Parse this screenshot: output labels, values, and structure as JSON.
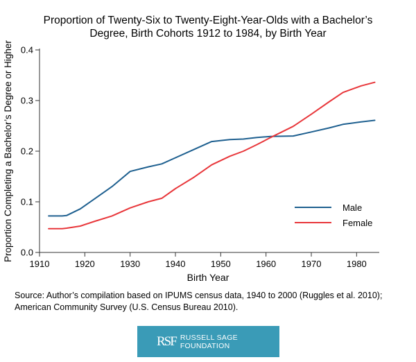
{
  "chart_data": {
    "type": "line",
    "title": "Proportion of Twenty-Six to Twenty-Eight-Year-Olds with a Bachelor’s Degree, Birth Cohorts 1912 to 1984, by Birth Year",
    "title_lines": [
      "Proportion of Twenty-Six to Twenty-Eight-Year-Olds with a Bachelor’s",
      "Degree, Birth Cohorts 1912 to 1984, by Birth Year"
    ],
    "xlabel": "Birth Year",
    "ylabel": "Proportion Completing a Bachelor’s Degree or Higher",
    "xlim": [
      1910,
      1985
    ],
    "ylim": [
      0,
      0.4
    ],
    "xticks": [
      1910,
      1920,
      1930,
      1940,
      1950,
      1960,
      1970,
      1980
    ],
    "yticks": [
      0.0,
      0.1,
      0.2,
      0.3,
      0.4
    ],
    "xtick_labels": [
      "1910",
      "1920",
      "1930",
      "1940",
      "1950",
      "1960",
      "1970",
      "1980"
    ],
    "ytick_labels": [
      "0.0",
      "0.1",
      "0.2",
      "0.3",
      "0.4"
    ],
    "grid": false,
    "legend_position": "inside-lower-right",
    "series": [
      {
        "name": "Male",
        "color": "#1d5f8f",
        "x": [
          1912,
          1915,
          1916,
          1919,
          1922,
          1926,
          1930,
          1934,
          1937,
          1940,
          1944,
          1948,
          1952,
          1955,
          1958,
          1961,
          1966,
          1970,
          1974,
          1977,
          1981,
          1984
        ],
        "y": [
          0.072,
          0.072,
          0.073,
          0.086,
          0.105,
          0.13,
          0.16,
          0.169,
          0.175,
          0.187,
          0.203,
          0.219,
          0.223,
          0.224,
          0.227,
          0.229,
          0.23,
          0.238,
          0.246,
          0.253,
          0.258,
          0.261
        ]
      },
      {
        "name": "Female",
        "color": "#e8363a",
        "x": [
          1912,
          1915,
          1916,
          1919,
          1922,
          1926,
          1930,
          1934,
          1937,
          1940,
          1944,
          1948,
          1952,
          1955,
          1958,
          1961,
          1966,
          1970,
          1974,
          1977,
          1981,
          1984
        ],
        "y": [
          0.047,
          0.047,
          0.048,
          0.052,
          0.061,
          0.072,
          0.088,
          0.1,
          0.107,
          0.126,
          0.148,
          0.173,
          0.19,
          0.2,
          0.213,
          0.227,
          0.249,
          0.273,
          0.298,
          0.316,
          0.329,
          0.336
        ]
      }
    ]
  },
  "source_text_lines": [
    "Source: Author’s compilation based on IPUMS census data, 1940 to 2000 (Ruggles et al. 2010);",
    "American Community Survey (U.S. Census Bureau 2010)."
  ],
  "logo": {
    "mark": "RSF",
    "name": "RUSSELL SAGE FOUNDATION"
  }
}
